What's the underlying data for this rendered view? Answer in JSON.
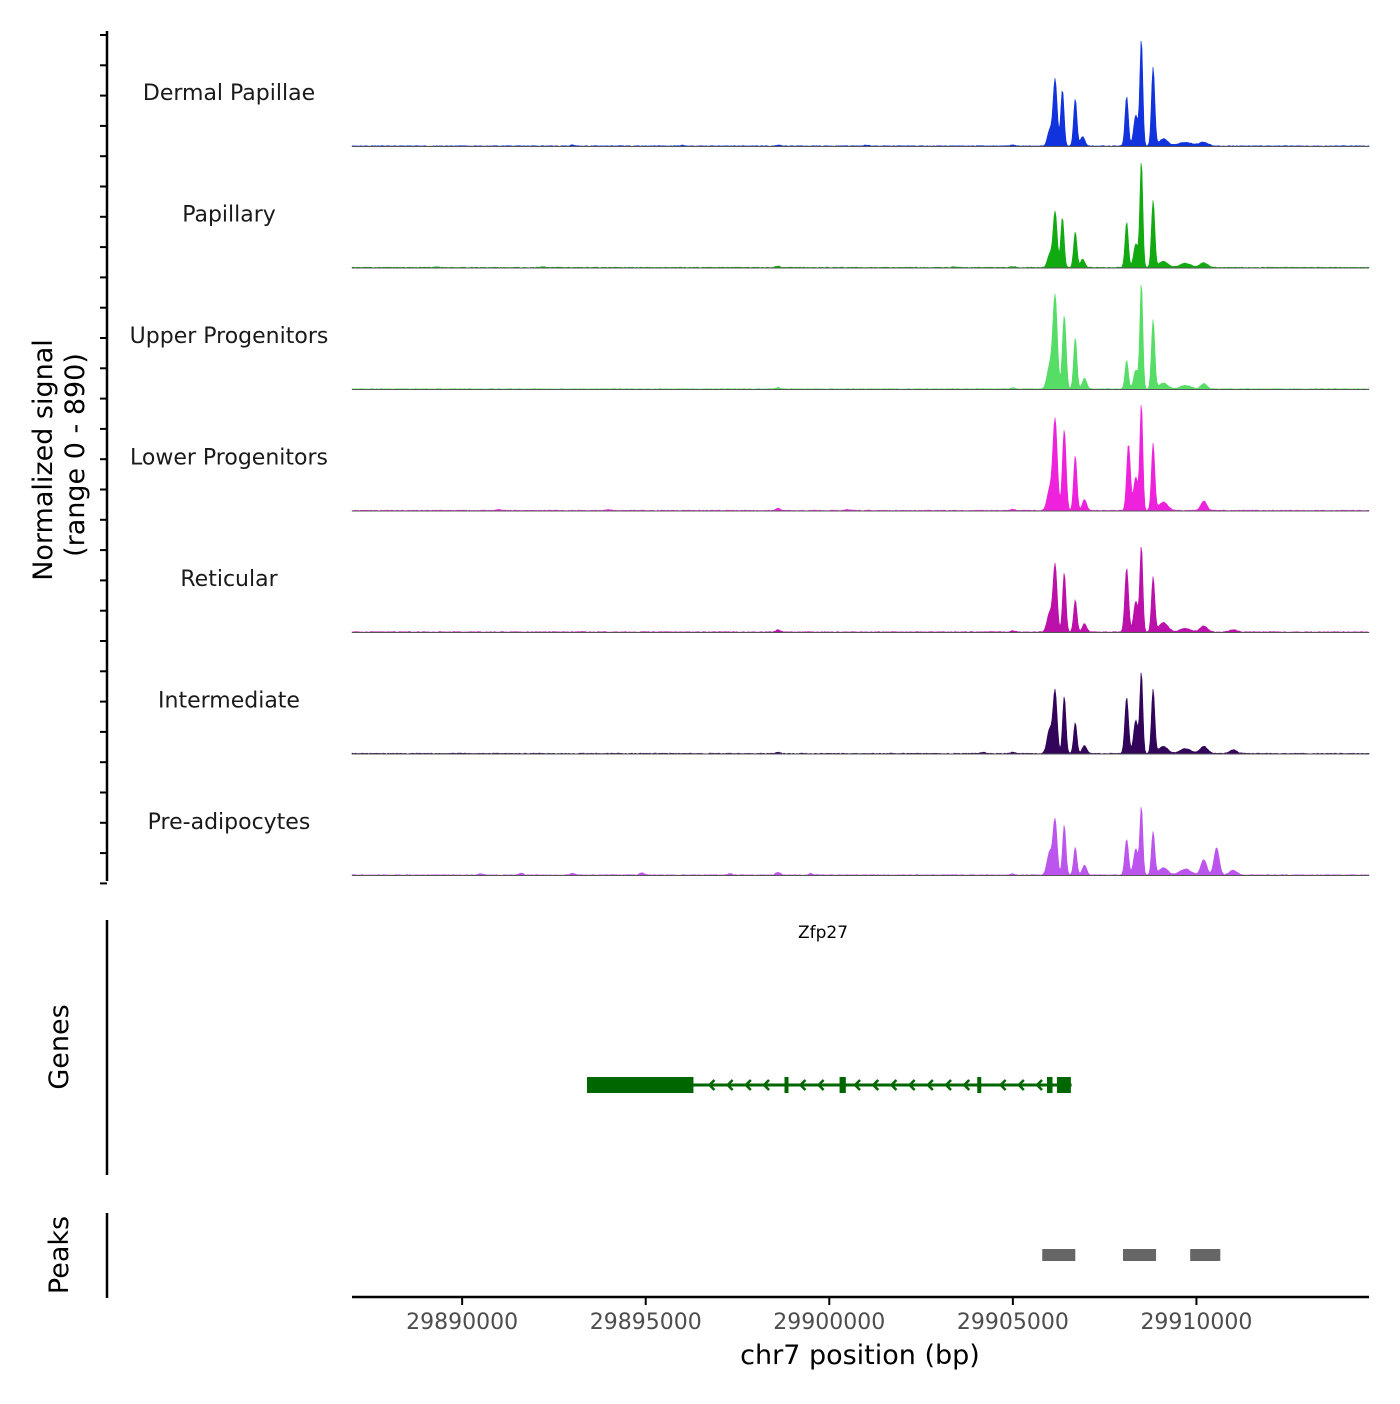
{
  "chart_data": {
    "type": "area",
    "title": "",
    "ylabel_line1": "Normalized signal",
    "ylabel_line2": "(range 0 - 890)",
    "y_range": [
      0,
      890
    ],
    "xlabel": "chr7 position (bp)",
    "xlim": [
      29887000,
      29914700
    ],
    "x_ticks": [
      29890000,
      29895000,
      29900000,
      29905000,
      29910000
    ],
    "x_tick_labels": [
      "29890000",
      "29895000",
      "29900000",
      "29905000",
      "29910000"
    ],
    "tracks": [
      {
        "name": "Dermal Papillae",
        "color": "#1133dd",
        "peaks": [
          [
            29906150,
            560,
            55
          ],
          [
            29906350,
            470,
            45
          ],
          [
            29906700,
            400,
            45
          ],
          [
            29906000,
            130,
            60
          ],
          [
            29906900,
            80,
            60
          ],
          [
            29908100,
            420,
            45
          ],
          [
            29908500,
            890,
            40
          ],
          [
            29908820,
            660,
            45
          ],
          [
            29908350,
            260,
            60
          ],
          [
            29909100,
            60,
            120
          ],
          [
            29909700,
            30,
            200
          ],
          [
            29910200,
            30,
            120
          ]
        ],
        "bumps": [
          [
            29893000,
            8
          ],
          [
            29896000,
            6
          ],
          [
            29898600,
            8
          ],
          [
            29901000,
            7
          ],
          [
            29905000,
            10
          ]
        ]
      },
      {
        "name": "Papillary",
        "color": "#11aa11",
        "peaks": [
          [
            29906150,
            470,
            55
          ],
          [
            29906350,
            420,
            45
          ],
          [
            29906700,
            300,
            45
          ],
          [
            29906000,
            110,
            60
          ],
          [
            29906900,
            70,
            60
          ],
          [
            29908100,
            380,
            45
          ],
          [
            29908500,
            890,
            40
          ],
          [
            29908820,
            560,
            45
          ],
          [
            29908350,
            200,
            60
          ],
          [
            29909100,
            50,
            120
          ],
          [
            29909700,
            35,
            150
          ],
          [
            29910200,
            40,
            100
          ]
        ],
        "bumps": [
          [
            29889300,
            6
          ],
          [
            29892200,
            6
          ],
          [
            29898600,
            10
          ],
          [
            29903400,
            6
          ],
          [
            29905000,
            8
          ]
        ]
      },
      {
        "name": "Upper Progenitors",
        "color": "#55dd66",
        "peaks": [
          [
            29906150,
            780,
            60
          ],
          [
            29906400,
            620,
            50
          ],
          [
            29906700,
            430,
            45
          ],
          [
            29906000,
            190,
            70
          ],
          [
            29906950,
            90,
            60
          ],
          [
            29908100,
            240,
            45
          ],
          [
            29908500,
            890,
            40
          ],
          [
            29908820,
            580,
            45
          ],
          [
            29908350,
            160,
            60
          ],
          [
            29909100,
            50,
            120
          ],
          [
            29909700,
            30,
            150
          ],
          [
            29910200,
            45,
            80
          ]
        ],
        "bumps": [
          [
            29898600,
            12
          ],
          [
            29905000,
            10
          ]
        ]
      },
      {
        "name": "Lower Progenitors",
        "color": "#ee22dd",
        "peaks": [
          [
            29906150,
            760,
            60
          ],
          [
            29906400,
            680,
            50
          ],
          [
            29906700,
            460,
            45
          ],
          [
            29906000,
            170,
            70
          ],
          [
            29906950,
            90,
            60
          ],
          [
            29908150,
            560,
            50
          ],
          [
            29908500,
            890,
            40
          ],
          [
            29908820,
            560,
            45
          ],
          [
            29908350,
            280,
            60
          ],
          [
            29909100,
            70,
            120
          ],
          [
            29910200,
            80,
            80
          ]
        ],
        "bumps": [
          [
            29891000,
            8
          ],
          [
            29894000,
            8
          ],
          [
            29898600,
            18
          ],
          [
            29900500,
            8
          ],
          [
            29905000,
            10
          ]
        ]
      },
      {
        "name": "Reticular",
        "color": "#bb11aa",
        "peaks": [
          [
            29906150,
            560,
            55
          ],
          [
            29906400,
            500,
            45
          ],
          [
            29906700,
            270,
            45
          ],
          [
            29906000,
            160,
            70
          ],
          [
            29906950,
            70,
            60
          ],
          [
            29908100,
            540,
            50
          ],
          [
            29908500,
            720,
            40
          ],
          [
            29908820,
            460,
            45
          ],
          [
            29908350,
            260,
            60
          ],
          [
            29909100,
            80,
            120
          ],
          [
            29909700,
            30,
            150
          ],
          [
            29910200,
            50,
            100
          ],
          [
            29911000,
            20,
            100
          ]
        ],
        "bumps": [
          [
            29898600,
            18
          ],
          [
            29905000,
            10
          ]
        ]
      },
      {
        "name": "Intermediate",
        "color": "#33055a",
        "peaks": [
          [
            29906150,
            520,
            55
          ],
          [
            29906400,
            480,
            45
          ],
          [
            29906700,
            260,
            45
          ],
          [
            29906000,
            200,
            70
          ],
          [
            29906950,
            70,
            60
          ],
          [
            29908100,
            470,
            50
          ],
          [
            29908500,
            680,
            40
          ],
          [
            29908820,
            540,
            45
          ],
          [
            29908350,
            280,
            60
          ],
          [
            29909100,
            60,
            120
          ],
          [
            29909700,
            40,
            150
          ],
          [
            29910200,
            60,
            100
          ],
          [
            29911000,
            30,
            100
          ]
        ],
        "bumps": [
          [
            29898600,
            10
          ],
          [
            29904200,
            10
          ],
          [
            29905000,
            10
          ]
        ]
      },
      {
        "name": "Pre-adipocytes",
        "color": "#bb55ee",
        "peaks": [
          [
            29906150,
            460,
            55
          ],
          [
            29906400,
            420,
            45
          ],
          [
            29906700,
            230,
            45
          ],
          [
            29906000,
            190,
            70
          ],
          [
            29906950,
            80,
            60
          ],
          [
            29908100,
            300,
            50
          ],
          [
            29908500,
            570,
            40
          ],
          [
            29908820,
            360,
            45
          ],
          [
            29908350,
            220,
            60
          ],
          [
            29909100,
            60,
            120
          ],
          [
            29909700,
            50,
            150
          ],
          [
            29910200,
            130,
            80
          ],
          [
            29910550,
            230,
            70
          ],
          [
            29911000,
            40,
            100
          ]
        ],
        "bumps": [
          [
            29890500,
            12
          ],
          [
            29891600,
            15
          ],
          [
            29893000,
            15
          ],
          [
            29894900,
            18
          ],
          [
            29897300,
            12
          ],
          [
            29898600,
            22
          ],
          [
            29899500,
            12
          ],
          [
            29905000,
            10
          ]
        ]
      }
    ],
    "genes": {
      "label": "Genes",
      "name": "Zfp27",
      "color": "#006600",
      "start": 29893400,
      "end": 29906600,
      "strand": "-",
      "exons": [
        [
          29893400,
          29896300
        ],
        [
          29898780,
          29898880
        ],
        [
          29900280,
          29900450
        ],
        [
          29904030,
          29904130
        ],
        [
          29905930,
          29906080
        ],
        [
          29906200,
          29906580
        ]
      ]
    },
    "peaks_track": {
      "label": "Peaks",
      "color": "#666666",
      "regions": [
        [
          29905800,
          29906700
        ],
        [
          29908000,
          29908900
        ],
        [
          29909830,
          29910650
        ]
      ]
    }
  }
}
